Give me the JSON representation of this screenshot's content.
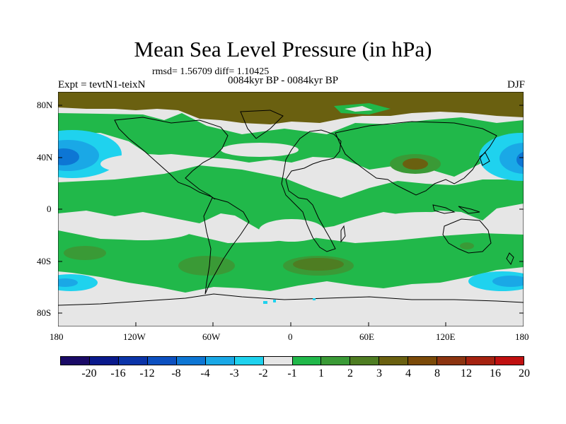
{
  "title": "Mean Sea Level Pressure (in hPa)",
  "stats": "rmsd= 1.56709 diff= 1.10425",
  "experiment": "Expt = tevtN1-teixN",
  "period": "0084kyr BP - 0084kyr BP",
  "season": "DJF",
  "lat_ticks": [
    "80N",
    "40N",
    "0",
    "40S",
    "80S"
  ],
  "lon_ticks": [
    "180",
    "120W",
    "60W",
    "0",
    "60E",
    "120E",
    "180"
  ],
  "colorbar": {
    "colors": [
      "#1a0a66",
      "#0a1a8c",
      "#0b34a8",
      "#0c50c0",
      "#0d76d4",
      "#1aa8e6",
      "#1fd2ee",
      "#e6e6e6",
      "#21b84a",
      "#3a9a36",
      "#4e7d22",
      "#6a6010",
      "#7b4a08",
      "#8c3410",
      "#a52210",
      "#c01010"
    ],
    "labels": [
      "-20",
      "-16",
      "-12",
      "-8",
      "-4",
      "-3",
      "-2",
      "-1",
      "1",
      "2",
      "3",
      "4",
      "8",
      "12",
      "16",
      "20"
    ]
  }
}
